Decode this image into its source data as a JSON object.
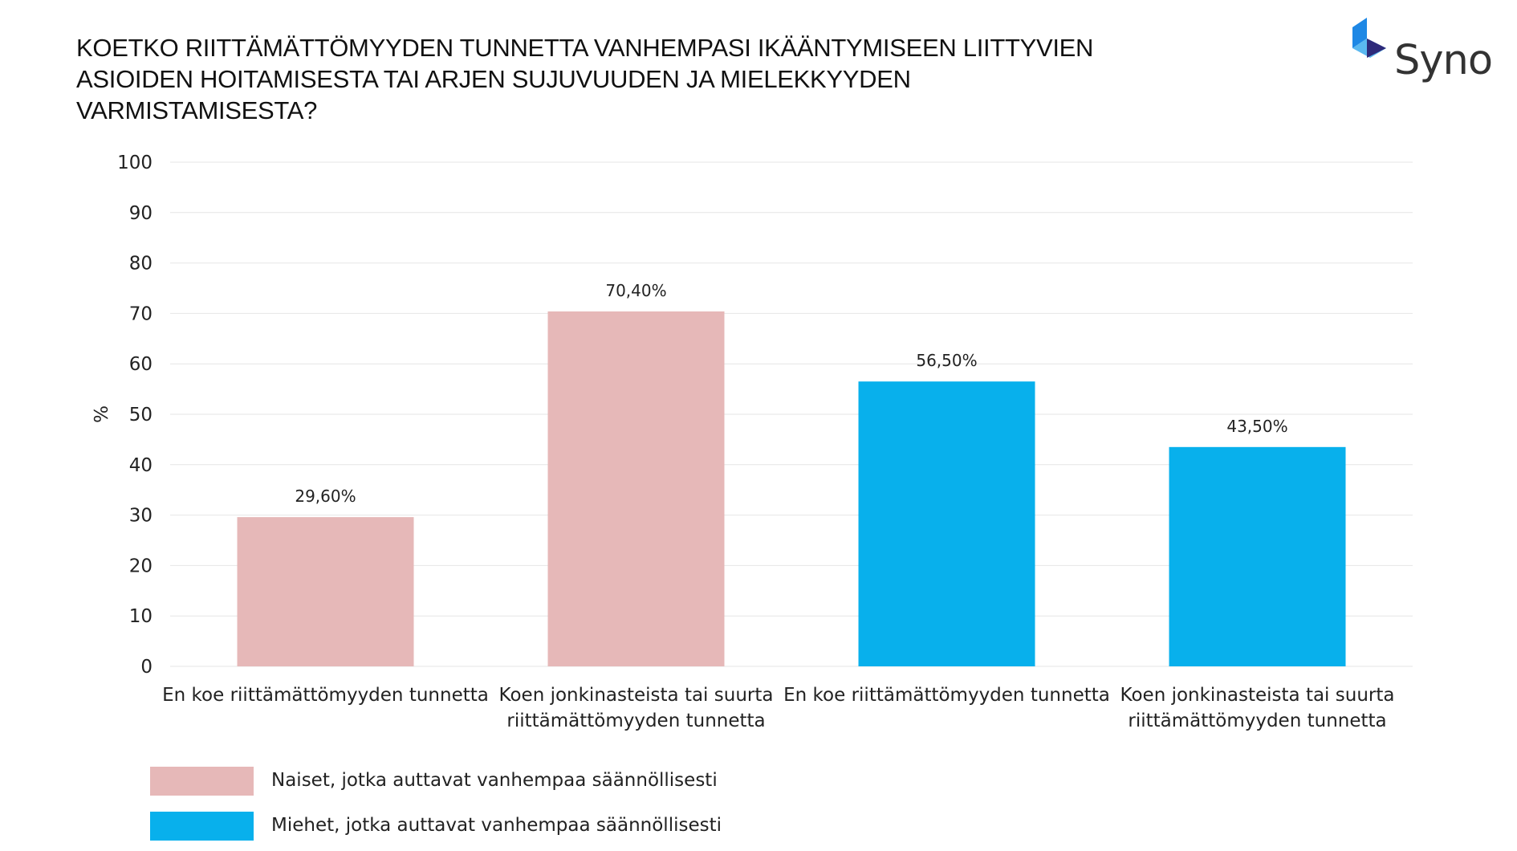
{
  "title_lines": [
    "KOETKO RIITTÄMÄTTÖMYYDEN TUNNETTA VANHEMPASI IKÄÄNTYMISEEN LIITTYVIEN",
    "ASIOIDEN HOITAMISESTA TAI ARJEN SUJUVUUDEN JA MIELEKKYYDEN",
    "VARMISTAMISESTA?"
  ],
  "logo": {
    "text": "Syno",
    "icon": "syno-cube-logo-icon"
  },
  "colors": {
    "pink": "#E6B8B8",
    "blue": "#08B0EC",
    "grid": "#E6E6E6",
    "text": "#222222"
  },
  "chart_data": {
    "type": "bar",
    "ylabel": "%",
    "ylim": [
      0,
      100
    ],
    "yticks": [
      0,
      10,
      20,
      30,
      40,
      50,
      60,
      70,
      80,
      90,
      100
    ],
    "grid": true,
    "bars": [
      {
        "category_lines": [
          "En koe riittämättömyyden tunnetta"
        ],
        "value": 29.6,
        "label": "29,60%",
        "series": 0
      },
      {
        "category_lines": [
          "Koen jonkinasteista tai suurta",
          "riittämättömyyden tunnetta"
        ],
        "value": 70.4,
        "label": "70,40%",
        "series": 0
      },
      {
        "category_lines": [
          "En koe riittämättömyyden tunnetta"
        ],
        "value": 56.5,
        "label": "56,50%",
        "series": 1
      },
      {
        "category_lines": [
          "Koen jonkinasteista tai suurta",
          "riittämättömyyden tunnetta"
        ],
        "value": 43.5,
        "label": "43,50%",
        "series": 1
      }
    ],
    "series": [
      {
        "name": "Naiset, jotka auttavat vanhempaa säännöllisesti",
        "color": "#E6B8B8"
      },
      {
        "name": "Miehet, jotka auttavat vanhempaa säännöllisesti",
        "color": "#08B0EC"
      }
    ],
    "legend_position": "bottom-left"
  }
}
